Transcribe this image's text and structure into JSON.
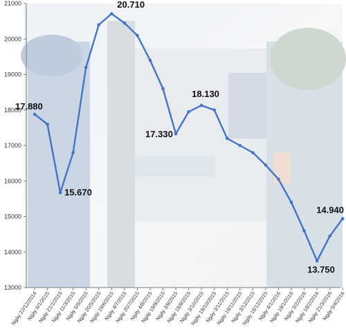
{
  "chart_data": {
    "type": "line",
    "title": "",
    "xlabel": "",
    "ylabel": "",
    "ylim": [
      13000,
      21000
    ],
    "yticks": [
      13000,
      14000,
      15000,
      16000,
      17000,
      18000,
      19000,
      20000,
      21000
    ],
    "grid": false,
    "line_color": "#4472c4",
    "categories": [
      "Ngày 22/12/2014",
      "Ngày 6/1/2015",
      "Ngày 21/1/2015",
      "Ngày 11/3/2015",
      "Ngày 5/5/2015",
      "Ngày 20/5/2015",
      "Ngày 19/6/2015",
      "Ngày 4/7/2015",
      "Ngày 20/7/2015",
      "Ngày 4/8/2015",
      "Ngày 19/8/2015",
      "Ngày 3/9/2015",
      "Ngày 18/9/2015",
      "Ngày 3/10/2015",
      "Ngày 19/10/2015",
      "Ngày 3/11/2015",
      "Ngày 18/11/2015",
      "Ngày 3/12/2015",
      "Ngày 18/12/2015",
      "Ngày 4/1/2016",
      "Ngày 19/1/2016",
      "Ngày 3/2/2016",
      "Ngày 18/2/2016",
      "Ngày 21/3/2016",
      "Ngày 5/4/2016"
    ],
    "values": [
      17880,
      17600,
      15670,
      16800,
      19200,
      20400,
      20710,
      20450,
      20100,
      19400,
      18600,
      17330,
      17950,
      18130,
      18000,
      17200,
      17000,
      16800,
      16450,
      16050,
      15400,
      14600,
      13750,
      14450,
      14940
    ],
    "data_labels": [
      {
        "index": 0,
        "text": "17.880"
      },
      {
        "index": 2,
        "text": "15.670"
      },
      {
        "index": 6,
        "text": "20.710"
      },
      {
        "index": 11,
        "text": "17.330"
      },
      {
        "index": 13,
        "text": "18.130"
      },
      {
        "index": 22,
        "text": "13.750"
      },
      {
        "index": 24,
        "text": "14.940"
      }
    ]
  }
}
